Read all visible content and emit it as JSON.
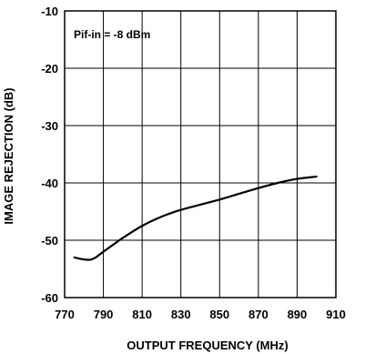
{
  "chart_data": {
    "type": "line",
    "title": "",
    "xlabel": "OUTPUT FREQUENCY (MHz)",
    "ylabel": "IMAGE REJECTION (dB)",
    "xlim": [
      770,
      910
    ],
    "ylim": [
      -60,
      -10
    ],
    "xticks": [
      770,
      790,
      810,
      830,
      850,
      870,
      890,
      910
    ],
    "yticks": [
      -10,
      -20,
      -30,
      -40,
      -50,
      -60
    ],
    "grid": true,
    "legend": "none",
    "annotations": [
      {
        "text": "Pif-in = -8 dBm"
      }
    ],
    "series": [
      {
        "color": "#000000",
        "x": [
          775,
          779,
          783,
          786,
          790,
          795,
          800,
          810,
          820,
          830,
          840,
          850,
          860,
          870,
          880,
          890,
          900
        ],
        "y": [
          -53.0,
          -53.3,
          -53.4,
          -53.0,
          -52.0,
          -50.8,
          -49.6,
          -47.5,
          -45.9,
          -44.7,
          -43.8,
          -42.9,
          -41.9,
          -40.9,
          -40.0,
          -39.3,
          -38.9
        ]
      }
    ]
  }
}
